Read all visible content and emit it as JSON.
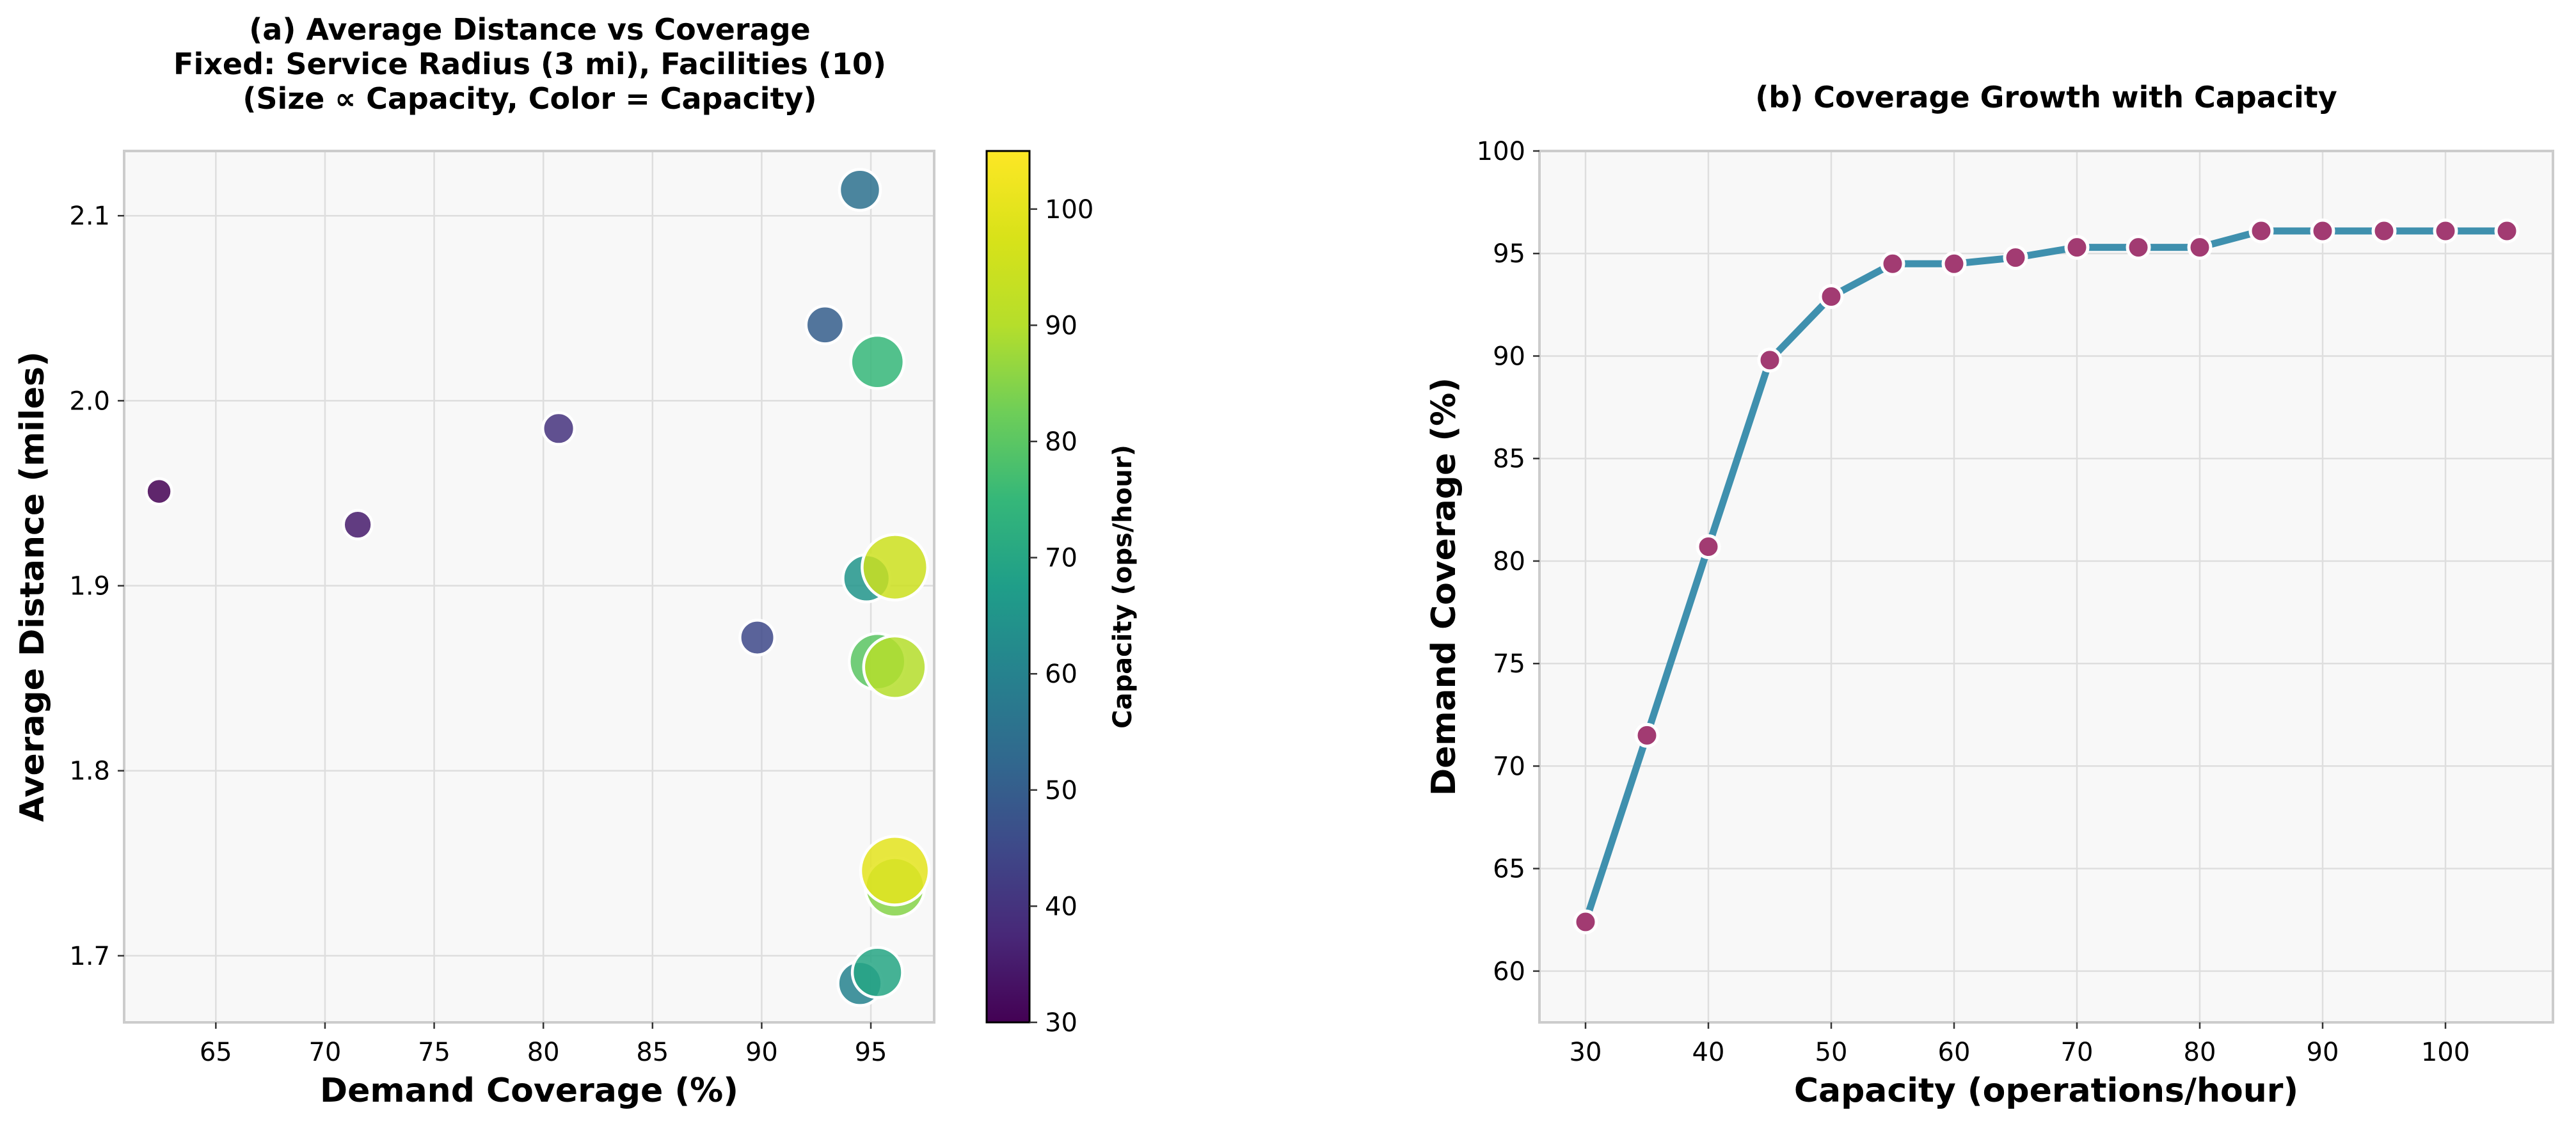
{
  "chart_data": [
    {
      "type": "scatter",
      "title_lines": [
        "(a) Average Distance vs Coverage",
        "Fixed: Service Radius (3 mi), Facilities (10)",
        "(Size ∝ Capacity, Color = Capacity)"
      ],
      "xlabel": "Demand Coverage (%)",
      "ylabel": "Average Distance (miles)",
      "xlim": [
        60.8,
        97.9
      ],
      "ylim": [
        1.664,
        2.135
      ],
      "xticks": [
        65,
        70,
        75,
        80,
        85,
        90,
        95
      ],
      "yticks": [
        1.7,
        1.8,
        1.9,
        2.0,
        2.1
      ],
      "ytick_labels": [
        "1.7",
        "1.8",
        "1.9",
        "2.0",
        "2.1"
      ],
      "grid": true,
      "colorbar": {
        "label": "Capacity (ops/hour)",
        "range": [
          30,
          105
        ],
        "ticks": [
          30,
          40,
          50,
          60,
          70,
          80,
          90,
          100
        ],
        "colormap": "viridis"
      },
      "points": [
        {
          "capacity": 30,
          "coverage": 62.4,
          "distance": 1.951
        },
        {
          "capacity": 35,
          "coverage": 71.5,
          "distance": 1.933
        },
        {
          "capacity": 40,
          "coverage": 80.7,
          "distance": 1.985
        },
        {
          "capacity": 45,
          "coverage": 89.8,
          "distance": 1.872
        },
        {
          "capacity": 50,
          "coverage": 92.9,
          "distance": 2.041
        },
        {
          "capacity": 55,
          "coverage": 94.5,
          "distance": 2.114
        },
        {
          "capacity": 60,
          "coverage": 94.5,
          "distance": 1.685
        },
        {
          "capacity": 65,
          "coverage": 94.8,
          "distance": 1.904
        },
        {
          "capacity": 70,
          "coverage": 95.3,
          "distance": 1.691
        },
        {
          "capacity": 75,
          "coverage": 95.3,
          "distance": 2.021
        },
        {
          "capacity": 80,
          "coverage": 95.3,
          "distance": 1.859
        },
        {
          "capacity": 85,
          "coverage": 96.1,
          "distance": 1.737
        },
        {
          "capacity": 90,
          "coverage": 96.1,
          "distance": 1.856
        },
        {
          "capacity": 95,
          "coverage": 96.1,
          "distance": 1.91
        },
        {
          "capacity": 100,
          "coverage": 96.1,
          "distance": 1.746
        }
      ]
    },
    {
      "type": "line",
      "title": "(b) Coverage Growth with Capacity",
      "xlabel": "Capacity (operations/hour)",
      "ylabel": "Demand Coverage (%)",
      "xlim": [
        26.25,
        108.75
      ],
      "ylim": [
        57.5,
        100
      ],
      "xticks": [
        30,
        40,
        50,
        60,
        70,
        80,
        90,
        100
      ],
      "yticks": [
        60,
        65,
        70,
        75,
        80,
        85,
        90,
        95,
        100
      ],
      "grid": true,
      "line_color": "#3f90ae",
      "marker_color": "#a23b72",
      "x": [
        30,
        35,
        40,
        45,
        50,
        55,
        60,
        65,
        70,
        75,
        80,
        85,
        90,
        95,
        100,
        105
      ],
      "y": [
        62.4,
        71.5,
        80.7,
        89.8,
        92.9,
        94.5,
        94.5,
        94.8,
        95.3,
        95.3,
        95.3,
        96.1,
        96.1,
        96.1,
        96.1,
        96.1
      ]
    }
  ]
}
